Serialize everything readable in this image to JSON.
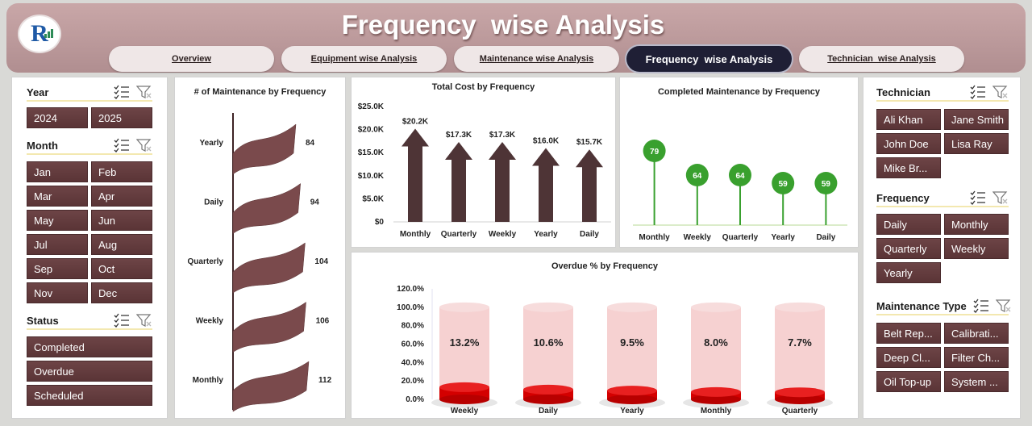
{
  "header": {
    "title": "Frequency  wise Analysis",
    "tabs": [
      {
        "label": "Overview",
        "active": false
      },
      {
        "label": "Equipment wise Analysis",
        "active": false
      },
      {
        "label": "Maintenance wise Analysis",
        "active": false
      },
      {
        "label": "Frequency  wise Analysis",
        "active": true
      },
      {
        "label": "Technician  wise Analysis",
        "active": false
      }
    ]
  },
  "left_slicers": {
    "year": {
      "label": "Year",
      "items": [
        "2024",
        "2025"
      ]
    },
    "month": {
      "label": "Month",
      "items": [
        "Jan",
        "Feb",
        "Mar",
        "Apr",
        "May",
        "Jun",
        "Jul",
        "Aug",
        "Sep",
        "Oct",
        "Nov",
        "Dec"
      ]
    },
    "status": {
      "label": "Status",
      "items": [
        "Completed",
        "Overdue",
        "Scheduled"
      ]
    }
  },
  "right_slicers": {
    "technician": {
      "label": "Technician",
      "items": [
        "Ali Khan",
        "Jane Smith",
        "John Doe",
        "Lisa Ray",
        "Mike Br..."
      ]
    },
    "frequency": {
      "label": "Frequency",
      "items": [
        "Daily",
        "Monthly",
        "Quarterly",
        "Weekly",
        "Yearly"
      ]
    },
    "maintenance_type": {
      "label": "Maintenance Type",
      "items": [
        "Belt Rep...",
        "Calibrati...",
        "Deep Cl...",
        "Filter Ch...",
        "Oil Top-up",
        "System ..."
      ]
    }
  },
  "icons": {
    "multi_select": "multi-select-icon",
    "clear_filter": "clear-filter-icon"
  },
  "colors": {
    "bar": "#4e3436",
    "flag": "#7a4a4c",
    "lollipop": "#39a02e",
    "cylinder_top": "#d40000",
    "cylinder_body": "#f4c9c9",
    "tab_active": "#1f1f35"
  },
  "chart_data": [
    {
      "type": "bar",
      "title": "# of Maintenance by Frequency",
      "orientation": "horizontal",
      "categories": [
        "Yearly",
        "Daily",
        "Quarterly",
        "Weekly",
        "Monthly"
      ],
      "values": [
        84,
        94,
        104,
        106,
        112
      ]
    },
    {
      "type": "bar",
      "title": "Total Cost by Frequency",
      "categories": [
        "Monthly",
        "Quarterly",
        "Weekly",
        "Yearly",
        "Daily"
      ],
      "values": [
        20200,
        17300,
        17300,
        16000,
        15700
      ],
      "data_labels": [
        "$20.2K",
        "$17.3K",
        "$17.3K",
        "$16.0K",
        "$15.7K"
      ],
      "yticks": [
        "$0",
        "$5.0K",
        "$10.0K",
        "$15.0K",
        "$20.0K",
        "$25.0K"
      ],
      "ylim": [
        0,
        25000
      ]
    },
    {
      "type": "scatter",
      "title": "Completed Maintenance by Frequency",
      "style": "lollipop",
      "categories": [
        "Monthly",
        "Weekly",
        "Quarterly",
        "Yearly",
        "Daily"
      ],
      "values": [
        79,
        64,
        64,
        59,
        59
      ]
    },
    {
      "type": "bar",
      "title": "Overdue % by Frequency",
      "style": "cylinder",
      "categories": [
        "Weekly",
        "Daily",
        "Yearly",
        "Monthly",
        "Quarterly"
      ],
      "values": [
        13.2,
        10.6,
        9.5,
        8.0,
        7.7
      ],
      "data_labels": [
        "13.2%",
        "10.6%",
        "9.5%",
        "8.0%",
        "7.7%"
      ],
      "yticks": [
        "0.0%",
        "20.0%",
        "40.0%",
        "60.0%",
        "80.0%",
        "100.0%",
        "120.0%"
      ],
      "ylim": [
        0,
        120
      ]
    }
  ]
}
